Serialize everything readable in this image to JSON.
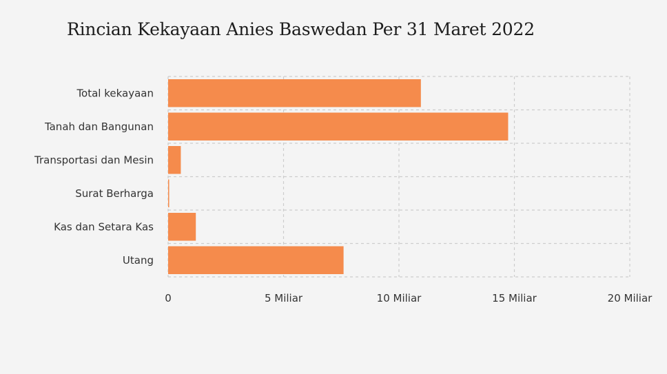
{
  "colors": {
    "background": "#f4f4f4",
    "bar": "#f58b4c",
    "grid": "#cccccc",
    "text": "#333333"
  },
  "chart_data": {
    "type": "bar",
    "orientation": "horizontal",
    "title": "Rincian Kekayaan Anies Baswedan Per 31 Maret 2022",
    "xlabel": "",
    "ylabel": "",
    "categories": [
      "Total kekayaan",
      "Tanah dan Bangunan",
      "Transportasi dan Mesin",
      "Surat Berharga",
      "Kas dan Setara Kas",
      "Utang"
    ],
    "values": [
      10950000000,
      14730000000,
      550000000,
      30000000,
      1200000000,
      7600000000
    ],
    "xlim": [
      0,
      20000000000
    ],
    "xticks": [
      0,
      5000000000,
      10000000000,
      15000000000,
      20000000000
    ],
    "xtick_labels": [
      "0",
      "5 Miliar",
      "10 Miliar",
      "15 Miliar",
      "20 Miliar"
    ],
    "grid": true,
    "grid_style": "dashed",
    "legend": "none"
  }
}
